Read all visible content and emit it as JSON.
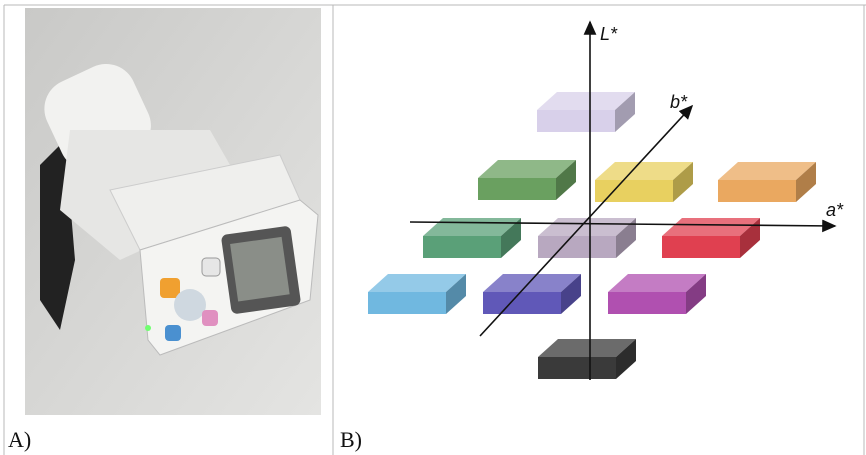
{
  "panels": [
    {
      "label": "A)"
    },
    {
      "label": "B)",
      "axes": {
        "vertical": "L*",
        "horizontal": "a*",
        "diagonal": "b*"
      }
    }
  ]
}
